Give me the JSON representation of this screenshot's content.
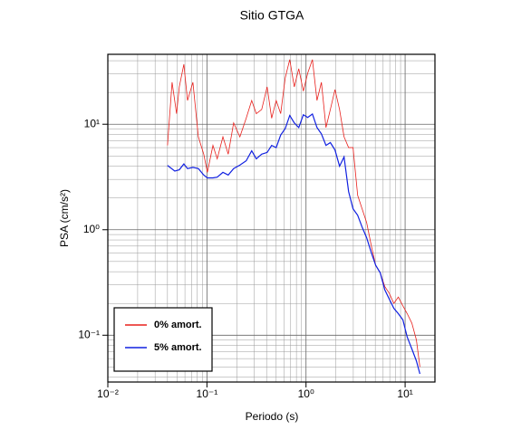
{
  "chart_data": {
    "type": "line",
    "title": "Sitio GTGA",
    "xlabel": "Periodo (s)",
    "ylabel": "PSA (cm/s²)",
    "xlog": true,
    "ylog": true,
    "grid": true,
    "legend": "lower left",
    "xlim": [
      0.01,
      20
    ],
    "ylim": [
      0.036,
      46
    ],
    "xticks": [
      {
        "value": 0.01,
        "label": "10⁻²"
      },
      {
        "value": 0.1,
        "label": "10⁻¹"
      },
      {
        "value": 1,
        "label": "10⁰"
      },
      {
        "value": 10,
        "label": "10¹"
      }
    ],
    "yticks": [
      {
        "value": 0.1,
        "label": "10⁻¹"
      },
      {
        "value": 1,
        "label": "10⁰"
      },
      {
        "value": 10,
        "label": "10¹"
      }
    ],
    "xminorticks": [
      0.02,
      0.03,
      0.04,
      0.05,
      0.06,
      0.07,
      0.08,
      0.09,
      0.2,
      0.3,
      0.4,
      0.5,
      0.6,
      0.7,
      0.8,
      0.9,
      2,
      3,
      4,
      5,
      6,
      7,
      8,
      9
    ],
    "yminorticks": [
      0.04,
      0.05,
      0.06,
      0.07,
      0.08,
      0.09,
      0.2,
      0.3,
      0.4,
      0.5,
      0.6,
      0.7,
      0.8,
      0.9,
      2,
      3,
      4,
      5,
      6,
      7,
      8,
      9,
      20,
      30,
      40
    ],
    "series": [
      {
        "name": "0% amort.",
        "color": "#e8201c",
        "x": [
          0.04,
          0.0445,
          0.0494,
          0.0526,
          0.0585,
          0.0637,
          0.0722,
          0.0819,
          0.0929,
          0.101,
          0.115,
          0.127,
          0.145,
          0.164,
          0.186,
          0.215,
          0.249,
          0.283,
          0.315,
          0.357,
          0.405,
          0.45,
          0.5,
          0.555,
          0.617,
          0.685,
          0.761,
          0.845,
          0.94,
          1.04,
          1.16,
          1.29,
          1.43,
          1.59,
          1.76,
          1.96,
          2.18,
          2.42,
          2.69,
          2.98,
          3.32,
          3.68,
          4.09,
          4.55,
          5.05,
          5.61,
          6.23,
          6.92,
          7.69,
          8.54,
          9.49,
          10.5,
          11.7,
          13.0,
          14.1
        ],
        "values": [
          6.3,
          25,
          12.6,
          22.6,
          37,
          16.8,
          25,
          7.6,
          5.2,
          3.5,
          6.3,
          4.7,
          7.6,
          5.2,
          10.3,
          7.6,
          11.4,
          16.8,
          12.6,
          13.8,
          22.6,
          11.4,
          16.8,
          12.6,
          27.6,
          41,
          22.6,
          33.6,
          20.6,
          30.5,
          41,
          16.8,
          25,
          9.3,
          13.8,
          21.3,
          13.8,
          7.6,
          6.0,
          6.0,
          2.12,
          1.58,
          1.17,
          0.71,
          0.46,
          0.39,
          0.29,
          0.25,
          0.2,
          0.23,
          0.19,
          0.16,
          0.13,
          0.09,
          0.05
        ]
      },
      {
        "name": "5% amort.",
        "color": "#1020e0",
        "x": [
          0.04,
          0.0474,
          0.0526,
          0.0585,
          0.0637,
          0.0722,
          0.0819,
          0.0929,
          0.101,
          0.115,
          0.127,
          0.145,
          0.164,
          0.186,
          0.215,
          0.249,
          0.283,
          0.315,
          0.357,
          0.405,
          0.45,
          0.5,
          0.555,
          0.617,
          0.685,
          0.761,
          0.845,
          0.94,
          1.04,
          1.16,
          1.29,
          1.43,
          1.59,
          1.76,
          1.96,
          2.18,
          2.42,
          2.69,
          2.98,
          3.32,
          3.68,
          4.09,
          4.55,
          5.05,
          5.61,
          6.23,
          6.92,
          7.69,
          8.54,
          9.49,
          10.5,
          11.7,
          13.0,
          14.1
        ],
        "values": [
          4.07,
          3.6,
          3.7,
          4.2,
          3.8,
          3.9,
          3.8,
          3.3,
          3.1,
          3.1,
          3.15,
          3.5,
          3.3,
          3.8,
          4.1,
          4.5,
          5.6,
          4.7,
          5.2,
          5.4,
          6.3,
          6.0,
          7.9,
          9.1,
          12.1,
          10.3,
          9.3,
          12.3,
          11.6,
          12.5,
          9.3,
          8.1,
          6.3,
          6.7,
          5.7,
          4.0,
          4.9,
          2.3,
          1.58,
          1.37,
          1.06,
          0.84,
          0.61,
          0.46,
          0.39,
          0.27,
          0.22,
          0.18,
          0.16,
          0.14,
          0.096,
          0.074,
          0.057,
          0.043
        ]
      }
    ]
  }
}
